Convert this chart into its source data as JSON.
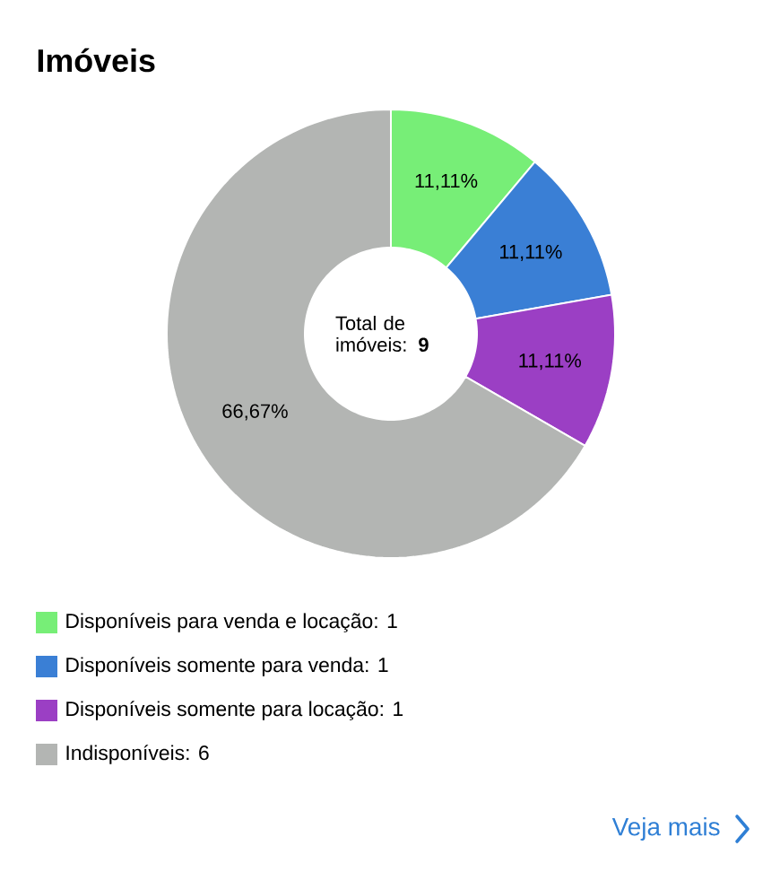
{
  "chart_data": {
    "type": "donut",
    "title": "Imóveis",
    "categories": [
      "Disponíveis para venda e locação: 1",
      "Disponíveis somente para venda: 1",
      "Disponíveis somente para locação: 1",
      "Indisponíveis: 6"
    ],
    "values": [
      11.11,
      11.11,
      11.11,
      66.67
    ],
    "value_labels": [
      "11,11%",
      "11,11%",
      "11,11%",
      "66,67%"
    ],
    "colors": [
      "#77ee77",
      "#3a7fd5",
      "#9b3fc4",
      "#b3b5b3"
    ],
    "legend": "bottom",
    "annotations": [
      "Total de imóveis:",
      "9",
      "Veja mais"
    ]
  }
}
